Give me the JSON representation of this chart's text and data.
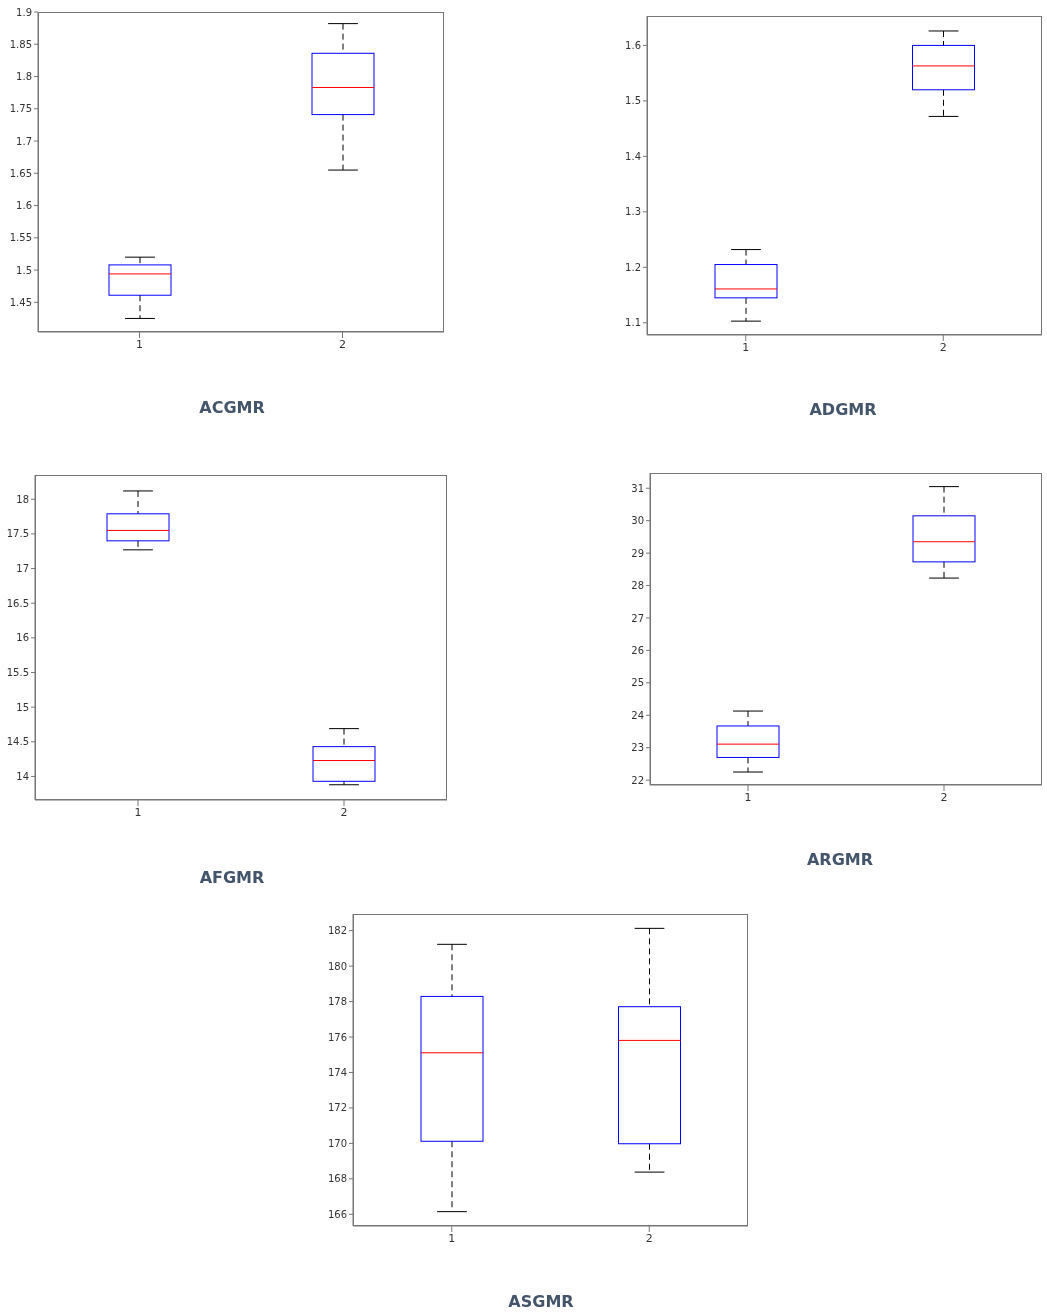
{
  "chart_data": [
    {
      "type": "box",
      "title": "ACGMR",
      "categories": [
        "1",
        "2"
      ],
      "color": "#0000ff",
      "ylim": [
        1.404,
        1.9
      ],
      "yticks": [
        1.45,
        1.5,
        1.55,
        1.6,
        1.65,
        1.7,
        1.75,
        1.8,
        1.85,
        1.9
      ],
      "boxes": [
        {
          "low": 1.425,
          "q1": 1.461,
          "median": 1.494,
          "q3": 1.508,
          "high": 1.52
        },
        {
          "low": 1.655,
          "q1": 1.741,
          "median": 1.783,
          "q3": 1.836,
          "high": 1.882
        }
      ]
    },
    {
      "type": "box",
      "title": "ADGMR",
      "categories": [
        "1",
        "2"
      ],
      "color": "#0000ff",
      "ylim": [
        1.078,
        1.653
      ],
      "yticks": [
        1.1,
        1.2,
        1.3,
        1.4,
        1.5,
        1.6
      ],
      "boxes": [
        {
          "low": 1.103,
          "q1": 1.145,
          "median": 1.161,
          "q3": 1.205,
          "high": 1.232
        },
        {
          "low": 1.472,
          "q1": 1.52,
          "median": 1.563,
          "q3": 1.6,
          "high": 1.626
        }
      ]
    },
    {
      "type": "box",
      "title": "AFGMR",
      "categories": [
        "1",
        "2"
      ],
      "color": "#0000ff",
      "ylim": [
        13.66,
        18.35
      ],
      "yticks": [
        14,
        14.5,
        15,
        15.5,
        16,
        16.5,
        17,
        17.5,
        18
      ],
      "boxes": [
        {
          "low": 17.27,
          "q1": 17.4,
          "median": 17.55,
          "q3": 17.79,
          "high": 18.12
        },
        {
          "low": 13.88,
          "q1": 13.93,
          "median": 14.23,
          "q3": 14.43,
          "high": 14.69
        }
      ]
    },
    {
      "type": "box",
      "title": "ARGMR",
      "categories": [
        "1",
        "2"
      ],
      "color": "#0000ff",
      "ylim": [
        21.85,
        31.47
      ],
      "yticks": [
        22,
        23,
        24,
        25,
        26,
        27,
        28,
        29,
        30,
        31
      ],
      "boxes": [
        {
          "low": 22.25,
          "q1": 22.7,
          "median": 23.11,
          "q3": 23.67,
          "high": 24.13
        },
        {
          "low": 28.23,
          "q1": 28.73,
          "median": 29.35,
          "q3": 30.15,
          "high": 31.05
        }
      ]
    },
    {
      "type": "box",
      "title": "ASGMR",
      "categories": [
        "1",
        "2"
      ],
      "color": "#0000ff",
      "ylim": [
        165.34,
        182.94
      ],
      "yticks": [
        166,
        168,
        170,
        172,
        174,
        176,
        178,
        180,
        182
      ],
      "boxes": [
        {
          "low": 166.15,
          "q1": 170.12,
          "median": 175.11,
          "q3": 178.29,
          "high": 181.23
        },
        {
          "low": 168.38,
          "q1": 169.98,
          "median": 175.81,
          "q3": 177.71,
          "high": 182.13
        }
      ]
    }
  ]
}
